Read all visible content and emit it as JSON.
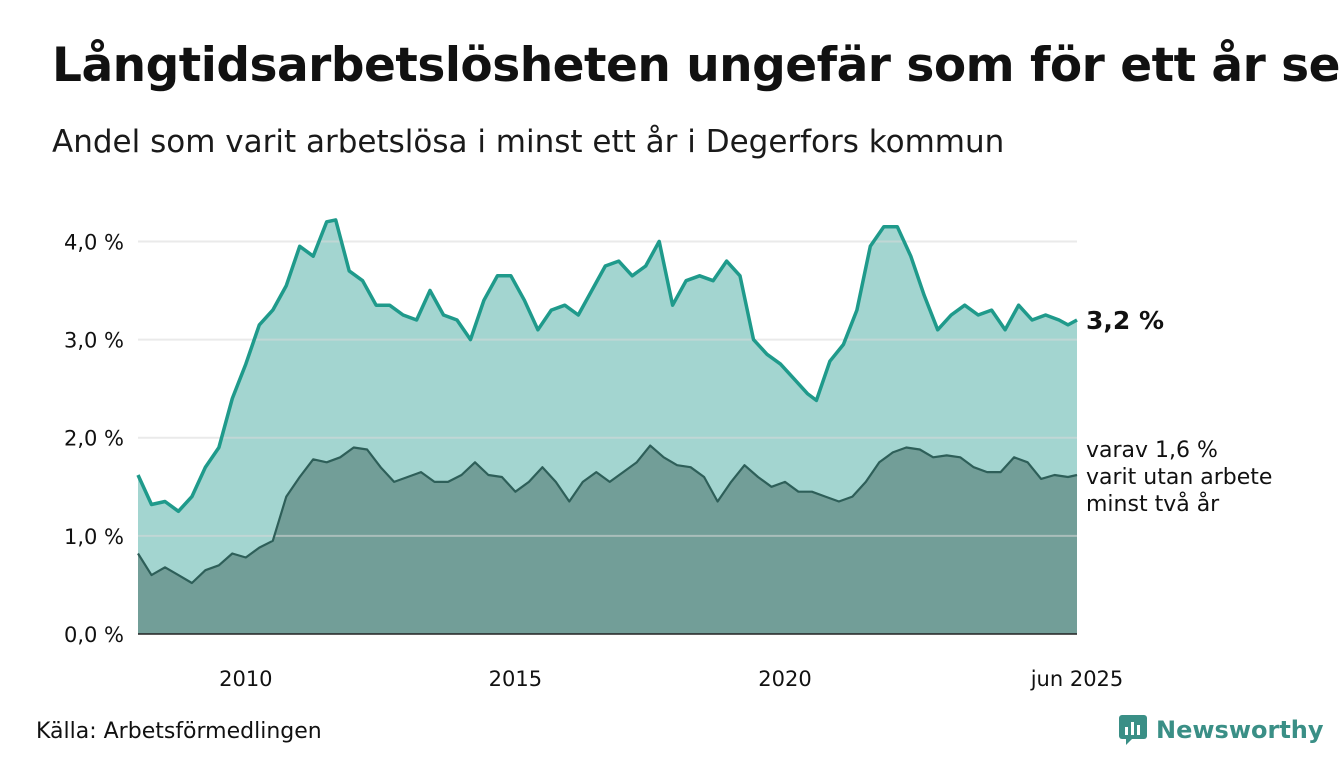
{
  "title": "Långtidsarbetslösheten ungefär som för ett år sen",
  "subtitle": "Andel som varit arbetslösa i minst ett år i Degerfors kommun",
  "source": "Källa: Arbetsförmedlingen",
  "brand": "Newsworthy",
  "colors": {
    "main_line": "#1f9a8b",
    "main_area": "#a3d5d0",
    "sub_line": "#2e5f59",
    "sub_area": "#729e98",
    "grid": "#d9d9d9"
  },
  "chart_data": {
    "type": "area",
    "x_start": "2008-01",
    "x_end": "2025-06",
    "x_ticks": [
      {
        "date": "2010-01",
        "label": "2010"
      },
      {
        "date": "2015-01",
        "label": "2015"
      },
      {
        "date": "2020-01",
        "label": "2020"
      },
      {
        "date": "2025-06",
        "label": "jun 2025"
      }
    ],
    "y_ticks": [
      {
        "value": 0,
        "label": "0,0 %"
      },
      {
        "value": 1,
        "label": "1,0 %"
      },
      {
        "value": 2,
        "label": "2,0 %"
      },
      {
        "value": 3,
        "label": "3,0 %"
      },
      {
        "value": 4,
        "label": "4,0 %"
      }
    ],
    "ylim": [
      0,
      4.3
    ],
    "grid": true,
    "series": [
      {
        "label_value": "3,2 %",
        "points": [
          [
            "2008-01",
            1.62
          ],
          [
            "2008-04",
            1.32
          ],
          [
            "2008-07",
            1.35
          ],
          [
            "2008-10",
            1.25
          ],
          [
            "2009-01",
            1.4
          ],
          [
            "2009-04",
            1.7
          ],
          [
            "2009-07",
            1.9
          ],
          [
            "2009-10",
            2.4
          ],
          [
            "2010-01",
            2.75
          ],
          [
            "2010-04",
            3.15
          ],
          [
            "2010-07",
            3.3
          ],
          [
            "2010-10",
            3.55
          ],
          [
            "2011-01",
            3.95
          ],
          [
            "2011-04",
            3.85
          ],
          [
            "2011-07",
            4.2
          ],
          [
            "2011-09",
            4.22
          ],
          [
            "2011-12",
            3.7
          ],
          [
            "2012-03",
            3.6
          ],
          [
            "2012-06",
            3.35
          ],
          [
            "2012-09",
            3.35
          ],
          [
            "2012-12",
            3.25
          ],
          [
            "2013-03",
            3.2
          ],
          [
            "2013-06",
            3.5
          ],
          [
            "2013-09",
            3.25
          ],
          [
            "2013-12",
            3.2
          ],
          [
            "2014-03",
            3.0
          ],
          [
            "2014-06",
            3.4
          ],
          [
            "2014-09",
            3.65
          ],
          [
            "2014-12",
            3.65
          ],
          [
            "2015-03",
            3.4
          ],
          [
            "2015-06",
            3.1
          ],
          [
            "2015-09",
            3.3
          ],
          [
            "2015-12",
            3.35
          ],
          [
            "2016-03",
            3.25
          ],
          [
            "2016-06",
            3.5
          ],
          [
            "2016-09",
            3.75
          ],
          [
            "2016-12",
            3.8
          ],
          [
            "2017-03",
            3.65
          ],
          [
            "2017-06",
            3.75
          ],
          [
            "2017-09",
            4.0
          ],
          [
            "2017-12",
            3.35
          ],
          [
            "2018-03",
            3.6
          ],
          [
            "2018-06",
            3.65
          ],
          [
            "2018-09",
            3.6
          ],
          [
            "2018-12",
            3.8
          ],
          [
            "2019-03",
            3.65
          ],
          [
            "2019-06",
            3.0
          ],
          [
            "2019-09",
            2.85
          ],
          [
            "2019-12",
            2.75
          ],
          [
            "2020-03",
            2.6
          ],
          [
            "2020-06",
            2.45
          ],
          [
            "2020-08",
            2.38
          ],
          [
            "2020-11",
            2.78
          ],
          [
            "2021-02",
            2.95
          ],
          [
            "2021-05",
            3.3
          ],
          [
            "2021-08",
            3.95
          ],
          [
            "2021-11",
            4.15
          ],
          [
            "2022-02",
            4.15
          ],
          [
            "2022-05",
            3.85
          ],
          [
            "2022-08",
            3.45
          ],
          [
            "2022-11",
            3.1
          ],
          [
            "2023-02",
            3.25
          ],
          [
            "2023-05",
            3.35
          ],
          [
            "2023-08",
            3.25
          ],
          [
            "2023-11",
            3.3
          ],
          [
            "2024-02",
            3.1
          ],
          [
            "2024-05",
            3.35
          ],
          [
            "2024-08",
            3.2
          ],
          [
            "2024-11",
            3.25
          ],
          [
            "2025-02",
            3.2
          ],
          [
            "2025-04",
            3.15
          ],
          [
            "2025-06",
            3.2
          ]
        ]
      },
      {
        "label_lines": [
          "varav 1,6 %",
          "varit utan arbete",
          "minst två år"
        ],
        "points": [
          [
            "2008-01",
            0.82
          ],
          [
            "2008-04",
            0.6
          ],
          [
            "2008-07",
            0.68
          ],
          [
            "2008-10",
            0.6
          ],
          [
            "2009-01",
            0.52
          ],
          [
            "2009-04",
            0.65
          ],
          [
            "2009-07",
            0.7
          ],
          [
            "2009-10",
            0.82
          ],
          [
            "2010-01",
            0.78
          ],
          [
            "2010-04",
            0.88
          ],
          [
            "2010-07",
            0.95
          ],
          [
            "2010-10",
            1.4
          ],
          [
            "2011-01",
            1.6
          ],
          [
            "2011-04",
            1.78
          ],
          [
            "2011-07",
            1.75
          ],
          [
            "2011-10",
            1.8
          ],
          [
            "2012-01",
            1.9
          ],
          [
            "2012-04",
            1.88
          ],
          [
            "2012-07",
            1.7
          ],
          [
            "2012-10",
            1.55
          ],
          [
            "2013-01",
            1.6
          ],
          [
            "2013-04",
            1.65
          ],
          [
            "2013-07",
            1.55
          ],
          [
            "2013-10",
            1.55
          ],
          [
            "2014-01",
            1.62
          ],
          [
            "2014-04",
            1.75
          ],
          [
            "2014-07",
            1.62
          ],
          [
            "2014-10",
            1.6
          ],
          [
            "2015-01",
            1.45
          ],
          [
            "2015-04",
            1.55
          ],
          [
            "2015-07",
            1.7
          ],
          [
            "2015-10",
            1.55
          ],
          [
            "2016-01",
            1.35
          ],
          [
            "2016-04",
            1.55
          ],
          [
            "2016-07",
            1.65
          ],
          [
            "2016-10",
            1.55
          ],
          [
            "2017-01",
            1.65
          ],
          [
            "2017-04",
            1.75
          ],
          [
            "2017-07",
            1.92
          ],
          [
            "2017-10",
            1.8
          ],
          [
            "2018-01",
            1.72
          ],
          [
            "2018-04",
            1.7
          ],
          [
            "2018-07",
            1.6
          ],
          [
            "2018-10",
            1.35
          ],
          [
            "2019-01",
            1.55
          ],
          [
            "2019-04",
            1.72
          ],
          [
            "2019-07",
            1.6
          ],
          [
            "2019-10",
            1.5
          ],
          [
            "2020-01",
            1.55
          ],
          [
            "2020-04",
            1.45
          ],
          [
            "2020-07",
            1.45
          ],
          [
            "2020-10",
            1.4
          ],
          [
            "2021-01",
            1.35
          ],
          [
            "2021-04",
            1.4
          ],
          [
            "2021-07",
            1.55
          ],
          [
            "2021-10",
            1.75
          ],
          [
            "2022-01",
            1.85
          ],
          [
            "2022-04",
            1.9
          ],
          [
            "2022-07",
            1.88
          ],
          [
            "2022-10",
            1.8
          ],
          [
            "2023-01",
            1.82
          ],
          [
            "2023-04",
            1.8
          ],
          [
            "2023-07",
            1.7
          ],
          [
            "2023-10",
            1.65
          ],
          [
            "2024-01",
            1.65
          ],
          [
            "2024-04",
            1.8
          ],
          [
            "2024-07",
            1.75
          ],
          [
            "2024-10",
            1.58
          ],
          [
            "2025-01",
            1.62
          ],
          [
            "2025-04",
            1.6
          ],
          [
            "2025-06",
            1.62
          ]
        ]
      }
    ]
  }
}
